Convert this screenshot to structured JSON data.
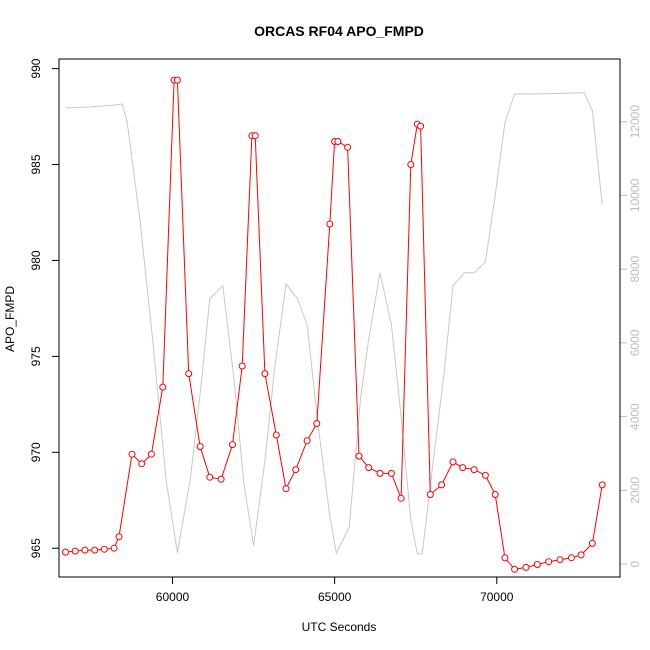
{
  "chart_data": {
    "type": "line",
    "title": "ORCAS RF04 APO_FMPD",
    "xlabel": "UTC Seconds",
    "ylabel": "APO_FMPD",
    "xlim": [
      56500,
      73800
    ],
    "ylim": [
      963.5,
      990.5
    ],
    "y2lim": [
      -350,
      13700
    ],
    "x_ticks": [
      60000,
      65000,
      70000
    ],
    "y_ticks": [
      965,
      970,
      975,
      980,
      985,
      990
    ],
    "y2_ticks": [
      0,
      2000,
      4000,
      6000,
      8000,
      10000,
      12000
    ],
    "grid": false,
    "series": [
      {
        "axis": "left",
        "color": "#ff0000",
        "marker": "open-circle",
        "points": [
          [
            56700,
            964.8
          ],
          [
            57000,
            964.85
          ],
          [
            57300,
            964.9
          ],
          [
            57600,
            964.9
          ],
          [
            57900,
            964.95
          ],
          [
            58200,
            965.0
          ],
          [
            58350,
            965.6
          ],
          [
            58750,
            969.9
          ],
          [
            59050,
            969.4
          ],
          [
            59350,
            969.9
          ],
          [
            59700,
            973.4
          ],
          [
            60050,
            989.4
          ],
          [
            60150,
            989.4
          ],
          [
            60500,
            974.1
          ],
          [
            60850,
            970.3
          ],
          [
            61150,
            968.7
          ],
          [
            61500,
            968.6
          ],
          [
            61850,
            970.4
          ],
          [
            62150,
            974.5
          ],
          [
            62450,
            986.5
          ],
          [
            62550,
            986.5
          ],
          [
            62850,
            974.1
          ],
          [
            63200,
            970.9
          ],
          [
            63500,
            968.1
          ],
          [
            63800,
            969.1
          ],
          [
            64150,
            970.6
          ],
          [
            64450,
            971.5
          ],
          [
            64850,
            981.9
          ],
          [
            65000,
            986.2
          ],
          [
            65100,
            986.2
          ],
          [
            65400,
            985.9
          ],
          [
            65750,
            969.8
          ],
          [
            66050,
            969.2
          ],
          [
            66400,
            968.9
          ],
          [
            66750,
            968.9
          ],
          [
            67050,
            967.6
          ],
          [
            67350,
            985.0
          ],
          [
            67550,
            987.1
          ],
          [
            67650,
            987.0
          ],
          [
            67950,
            967.8
          ],
          [
            68300,
            968.3
          ],
          [
            68650,
            969.5
          ],
          [
            68950,
            969.2
          ],
          [
            69300,
            969.1
          ],
          [
            69650,
            968.8
          ],
          [
            69950,
            967.8
          ],
          [
            70250,
            964.5
          ],
          [
            70550,
            963.9
          ],
          [
            70900,
            964.0
          ],
          [
            71250,
            964.15
          ],
          [
            71600,
            964.3
          ],
          [
            71950,
            964.4
          ],
          [
            72300,
            964.5
          ],
          [
            72600,
            964.65
          ],
          [
            72950,
            965.25
          ],
          [
            73250,
            968.3
          ]
        ]
      },
      {
        "axis": "right",
        "color": "#c8c8c8",
        "marker": "none",
        "points": [
          [
            56700,
            12370
          ],
          [
            57500,
            12400
          ],
          [
            58200,
            12450
          ],
          [
            58450,
            12480
          ],
          [
            58600,
            12000
          ],
          [
            59000,
            9300
          ],
          [
            59400,
            6000
          ],
          [
            59800,
            2300
          ],
          [
            60150,
            300
          ],
          [
            60550,
            2300
          ],
          [
            60900,
            5000
          ],
          [
            61150,
            7200
          ],
          [
            61550,
            7550
          ],
          [
            61900,
            5000
          ],
          [
            62200,
            2200
          ],
          [
            62500,
            500
          ],
          [
            62850,
            2800
          ],
          [
            63150,
            5300
          ],
          [
            63500,
            7600
          ],
          [
            63850,
            7200
          ],
          [
            64150,
            6500
          ],
          [
            64500,
            3700
          ],
          [
            64850,
            1300
          ],
          [
            65050,
            300
          ],
          [
            65450,
            1000
          ],
          [
            65800,
            4500
          ],
          [
            66050,
            6100
          ],
          [
            66400,
            7900
          ],
          [
            66750,
            6500
          ],
          [
            67050,
            4000
          ],
          [
            67350,
            1200
          ],
          [
            67550,
            280
          ],
          [
            67700,
            280
          ],
          [
            68000,
            2500
          ],
          [
            68350,
            5000
          ],
          [
            68650,
            7550
          ],
          [
            69000,
            7900
          ],
          [
            69300,
            7900
          ],
          [
            69650,
            8200
          ],
          [
            69950,
            10000
          ],
          [
            70250,
            11970
          ],
          [
            70550,
            12750
          ],
          [
            71500,
            12760
          ],
          [
            72500,
            12780
          ],
          [
            72700,
            12780
          ],
          [
            72950,
            12300
          ],
          [
            73250,
            9750
          ]
        ]
      }
    ]
  }
}
